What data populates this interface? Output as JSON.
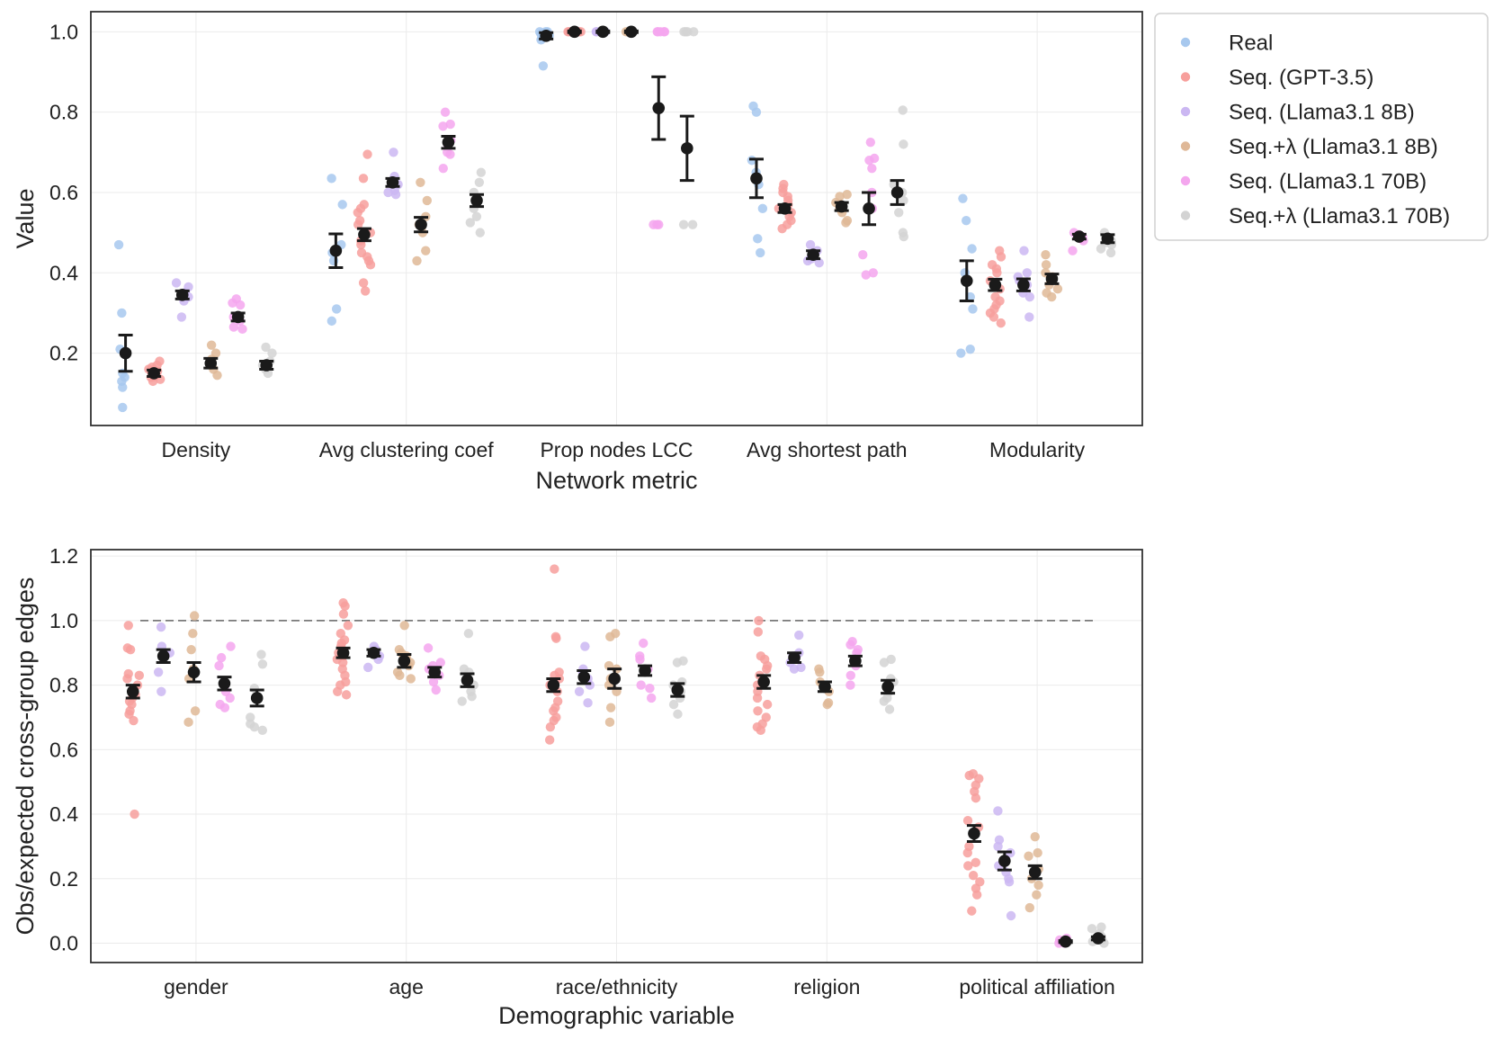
{
  "legend": {
    "entries": [
      {
        "key": "real",
        "label": "Real",
        "color": "#a7c8ee"
      },
      {
        "key": "gpt35",
        "label": "Seq. (GPT-3.5)",
        "color": "#f79f9c"
      },
      {
        "key": "l8",
        "label": "Seq. (Llama3.1 8B)",
        "color": "#cbb7f2"
      },
      {
        "key": "l8lam",
        "label": "Seq.+λ (Llama3.1 8B)",
        "color": "#dfb897"
      },
      {
        "key": "l70",
        "label": "Seq. (Llama3.1 70B)",
        "color": "#f4a6ee"
      },
      {
        "key": "l70lam",
        "label": "Seq.+λ (Llama3.1 70B)",
        "color": "#d3d3d3"
      }
    ]
  },
  "chart_data": [
    {
      "type": "scatter",
      "subtype": "strip plot with mean and error bars",
      "xlabel": "Network metric",
      "ylabel": "Value",
      "ylim": [
        0.02,
        1.05
      ],
      "yticks": [
        "0.2",
        "0.4",
        "0.6",
        "0.8",
        "1.0"
      ],
      "categories": [
        "Density",
        "Avg clustering coef",
        "Prop nodes LCC",
        "Avg shortest path",
        "Modularity"
      ],
      "reference_line": null,
      "series": [
        {
          "name": "Real",
          "key": "real",
          "means": [
            0.2,
            0.455,
            0.99,
            0.635,
            0.38
          ],
          "errors": [
            0.045,
            0.042,
            0.008,
            0.048,
            0.05
          ],
          "points": [
            [
              0.47,
              0.3,
              0.21,
              0.15,
              0.14,
              0.13,
              0.115,
              0.065
            ],
            [
              0.635,
              0.57,
              0.47,
              0.45,
              0.43,
              0.31,
              0.28
            ],
            [
              1.0,
              1.0,
              1.0,
              0.995,
              0.99,
              0.985,
              0.98,
              0.915
            ],
            [
              0.815,
              0.8,
              0.68,
              0.65,
              0.62,
              0.56,
              0.485,
              0.45
            ],
            [
              0.585,
              0.53,
              0.46,
              0.4,
              0.34,
              0.31,
              0.21,
              0.2
            ]
          ]
        },
        {
          "name": "Seq. (GPT-3.5)",
          "key": "gpt35",
          "means": [
            0.15,
            0.495,
            1.0,
            0.56,
            0.37
          ],
          "errors": [
            0.008,
            0.015,
            0.002,
            0.01,
            0.014
          ],
          "points": [
            [
              0.18,
              0.17,
              0.16,
              0.155,
              0.15,
              0.145,
              0.14,
              0.135,
              0.13,
              0.165,
              0.158,
              0.142
            ],
            [
              0.695,
              0.635,
              0.57,
              0.56,
              0.55,
              0.53,
              0.52,
              0.5,
              0.48,
              0.47,
              0.45,
              0.44,
              0.43,
              0.42,
              0.375,
              0.355
            ],
            [
              1.0,
              1.0,
              1.0,
              1.0,
              1.0,
              1.0
            ],
            [
              0.62,
              0.61,
              0.6,
              0.59,
              0.58,
              0.57,
              0.56,
              0.55,
              0.54,
              0.53,
              0.52,
              0.51
            ],
            [
              0.455,
              0.44,
              0.42,
              0.41,
              0.4,
              0.38,
              0.36,
              0.34,
              0.33,
              0.32,
              0.31,
              0.3,
              0.29,
              0.275
            ]
          ]
        },
        {
          "name": "Seq. (Llama3.1 8B)",
          "key": "l8",
          "means": [
            0.345,
            0.625,
            1.0,
            0.445,
            0.37
          ],
          "errors": [
            0.01,
            0.01,
            0.002,
            0.01,
            0.015
          ],
          "points": [
            [
              0.375,
              0.365,
              0.35,
              0.34,
              0.33,
              0.29
            ],
            [
              0.7,
              0.64,
              0.62,
              0.605,
              0.6,
              0.595
            ],
            [
              1.0,
              1.0,
              1.0,
              1.0,
              1.0
            ],
            [
              0.47,
              0.455,
              0.44,
              0.435,
              0.43,
              0.425
            ],
            [
              0.455,
              0.4,
              0.39,
              0.38,
              0.37,
              0.35,
              0.34,
              0.29
            ]
          ]
        },
        {
          "name": "Seq.+λ (Llama3.1 8B)",
          "key": "l8lam",
          "means": [
            0.175,
            0.52,
            1.0,
            0.565,
            0.385
          ],
          "errors": [
            0.012,
            0.018,
            0.002,
            0.01,
            0.012
          ],
          "points": [
            [
              0.22,
              0.2,
              0.185,
              0.17,
              0.16,
              0.145
            ],
            [
              0.625,
              0.58,
              0.54,
              0.52,
              0.5,
              0.455,
              0.43
            ],
            [
              1.0,
              1.0,
              1.0,
              1.0,
              1.0
            ],
            [
              0.595,
              0.59,
              0.575,
              0.56,
              0.55,
              0.53,
              0.525
            ],
            [
              0.445,
              0.42,
              0.4,
              0.39,
              0.37,
              0.36,
              0.35,
              0.34
            ]
          ]
        },
        {
          "name": "Seq. (Llama3.1 70B)",
          "key": "l70",
          "means": [
            0.29,
            0.725,
            0.81,
            0.56,
            0.49
          ],
          "errors": [
            0.01,
            0.015,
            0.078,
            0.04,
            0.006
          ],
          "points": [
            [
              0.335,
              0.325,
              0.32,
              0.29,
              0.28,
              0.265,
              0.26
            ],
            [
              0.8,
              0.77,
              0.765,
              0.73,
              0.72,
              0.7,
              0.695,
              0.66
            ],
            [
              1.0,
              1.0,
              1.0,
              1.0,
              1.0,
              0.52,
              0.52,
              0.52
            ],
            [
              0.725,
              0.685,
              0.68,
              0.66,
              0.6,
              0.56,
              0.445,
              0.4,
              0.395
            ],
            [
              0.5,
              0.495,
              0.49,
              0.485,
              0.48,
              0.455
            ]
          ]
        },
        {
          "name": "Seq.+λ (Llama3.1 70B)",
          "key": "l70lam",
          "means": [
            0.17,
            0.58,
            0.71,
            0.6,
            0.485
          ],
          "errors": [
            0.01,
            0.015,
            0.08,
            0.03,
            0.01
          ],
          "points": [
            [
              0.215,
              0.2,
              0.18,
              0.17,
              0.16,
              0.15
            ],
            [
              0.65,
              0.625,
              0.6,
              0.58,
              0.56,
              0.54,
              0.525,
              0.5
            ],
            [
              1.0,
              1.0,
              1.0,
              1.0,
              0.52,
              0.52
            ],
            [
              0.805,
              0.72,
              0.62,
              0.6,
              0.58,
              0.55,
              0.5,
              0.49
            ],
            [
              0.5,
              0.49,
              0.48,
              0.475,
              0.47,
              0.46,
              0.45
            ]
          ]
        }
      ]
    },
    {
      "type": "scatter",
      "subtype": "strip plot with mean and error bars",
      "xlabel": "Demographic variable",
      "ylabel": "Obs/expected cross-group edges",
      "ylim": [
        -0.06,
        1.22
      ],
      "yticks": [
        "0.0",
        "0.2",
        "0.4",
        "0.6",
        "0.8",
        "1.0",
        "1.2"
      ],
      "categories": [
        "gender",
        "age",
        "race/ethnicity",
        "religion",
        "political affiliation"
      ],
      "reference_line": {
        "y": 1.0,
        "style": "dashed"
      },
      "series": [
        {
          "name": "Seq. (GPT-3.5)",
          "key": "gpt35",
          "means": [
            0.78,
            0.9,
            0.8,
            0.81,
            0.34
          ],
          "errors": [
            0.02,
            0.015,
            0.02,
            0.02,
            0.025
          ],
          "points": [
            [
              0.985,
              0.915,
              0.91,
              0.835,
              0.83,
              0.82,
              0.8,
              0.79,
              0.77,
              0.76,
              0.75,
              0.74,
              0.72,
              0.71,
              0.69,
              0.4
            ],
            [
              1.055,
              1.045,
              1.02,
              0.985,
              0.96,
              0.94,
              0.93,
              0.92,
              0.9,
              0.89,
              0.88,
              0.87,
              0.85,
              0.83,
              0.81,
              0.8,
              0.78,
              0.77
            ],
            [
              1.16,
              0.95,
              0.945,
              0.84,
              0.83,
              0.82,
              0.8,
              0.78,
              0.75,
              0.73,
              0.72,
              0.7,
              0.69,
              0.67,
              0.63
            ],
            [
              1.0,
              0.965,
              0.89,
              0.88,
              0.86,
              0.85,
              0.83,
              0.8,
              0.78,
              0.76,
              0.74,
              0.72,
              0.7,
              0.68,
              0.67,
              0.66
            ],
            [
              0.525,
              0.52,
              0.51,
              0.49,
              0.47,
              0.45,
              0.38,
              0.36,
              0.3,
              0.28,
              0.25,
              0.24,
              0.21,
              0.19,
              0.17,
              0.15,
              0.1
            ]
          ]
        },
        {
          "name": "Seq. (Llama3.1 8B)",
          "key": "l8",
          "means": [
            0.89,
            0.9,
            0.825,
            0.885,
            0.255
          ],
          "errors": [
            0.02,
            0.01,
            0.02,
            0.015,
            0.028
          ],
          "points": [
            [
              0.98,
              0.92,
              0.9,
              0.89,
              0.84,
              0.78
            ],
            [
              0.92,
              0.91,
              0.9,
              0.895,
              0.89,
              0.88,
              0.855
            ],
            [
              0.92,
              0.85,
              0.84,
              0.82,
              0.8,
              0.78,
              0.745
            ],
            [
              0.955,
              0.9,
              0.89,
              0.87,
              0.855,
              0.85
            ],
            [
              0.41,
              0.32,
              0.3,
              0.28,
              0.24,
              0.22,
              0.2,
              0.19,
              0.085
            ]
          ]
        },
        {
          "name": "Seq.+λ (Llama3.1 8B)",
          "key": "l8lam",
          "means": [
            0.84,
            0.875,
            0.82,
            0.795,
            0.22
          ],
          "errors": [
            0.03,
            0.02,
            0.03,
            0.015,
            0.02
          ],
          "points": [
            [
              1.015,
              0.96,
              0.91,
              0.85,
              0.82,
              0.72,
              0.685
            ],
            [
              0.985,
              0.91,
              0.9,
              0.89,
              0.87,
              0.86,
              0.84,
              0.83,
              0.82
            ],
            [
              0.96,
              0.95,
              0.86,
              0.85,
              0.82,
              0.8,
              0.78,
              0.73,
              0.685
            ],
            [
              0.85,
              0.84,
              0.81,
              0.78,
              0.745,
              0.74
            ],
            [
              0.33,
              0.28,
              0.27,
              0.23,
              0.2,
              0.18,
              0.15,
              0.11
            ]
          ]
        },
        {
          "name": "Seq. (Llama3.1 70B)",
          "key": "l70",
          "means": [
            0.805,
            0.84,
            0.845,
            0.875,
            0.005
          ],
          "errors": [
            0.02,
            0.015,
            0.015,
            0.015,
            0.003
          ],
          "points": [
            [
              0.92,
              0.885,
              0.86,
              0.78,
              0.76,
              0.74,
              0.73
            ],
            [
              0.915,
              0.87,
              0.86,
              0.85,
              0.83,
              0.81,
              0.785
            ],
            [
              0.93,
              0.89,
              0.88,
              0.85,
              0.8,
              0.79,
              0.76
            ],
            [
              0.935,
              0.925,
              0.91,
              0.9,
              0.86,
              0.83,
              0.8
            ],
            [
              0.015,
              0.01,
              0.005,
              0.0,
              0.0
            ]
          ]
        },
        {
          "name": "Seq.+λ (Llama3.1 70B)",
          "key": "l70lam",
          "means": [
            0.76,
            0.815,
            0.785,
            0.795,
            0.015
          ],
          "errors": [
            0.025,
            0.02,
            0.02,
            0.02,
            0.005
          ],
          "points": [
            [
              0.895,
              0.865,
              0.79,
              0.7,
              0.68,
              0.67,
              0.66
            ],
            [
              0.96,
              0.85,
              0.84,
              0.82,
              0.8,
              0.78,
              0.765,
              0.75
            ],
            [
              0.875,
              0.87,
              0.81,
              0.8,
              0.78,
              0.76,
              0.74,
              0.71
            ],
            [
              0.88,
              0.87,
              0.82,
              0.81,
              0.78,
              0.76,
              0.75,
              0.725
            ],
            [
              0.05,
              0.045,
              0.03,
              0.02,
              0.01,
              0.005,
              0.0
            ]
          ]
        }
      ]
    }
  ]
}
